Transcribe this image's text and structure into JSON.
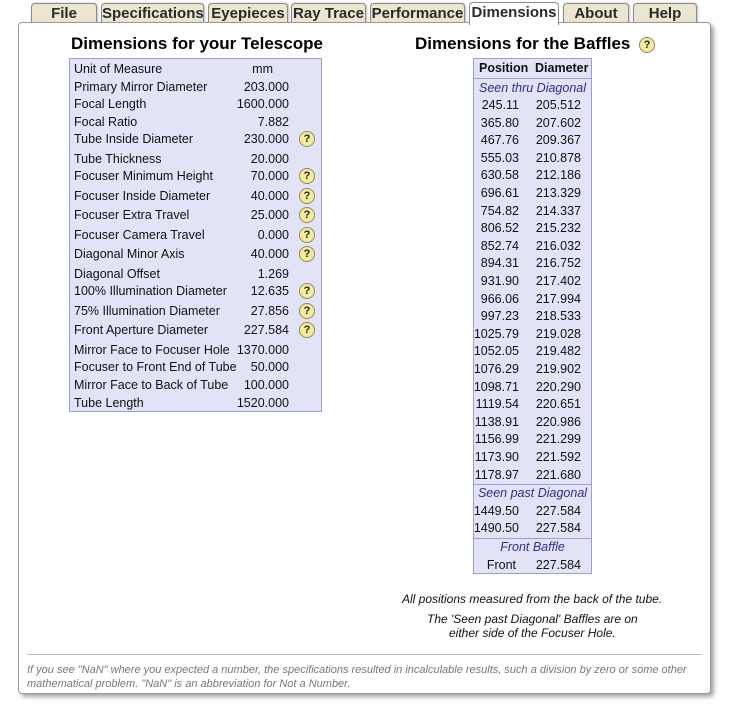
{
  "tabs": [
    {
      "label": "File"
    },
    {
      "label": "Specifications"
    },
    {
      "label": "Eyepieces"
    },
    {
      "label": "Ray Trace"
    },
    {
      "label": "Performance"
    },
    {
      "label": "Dimensions",
      "active": true
    },
    {
      "label": "About"
    },
    {
      "label": "Help"
    }
  ],
  "telescope": {
    "title": "Dimensions for your Telescope",
    "rows": [
      {
        "label": "Unit of Measure",
        "value": "mm"
      },
      {
        "label": "Primary Mirror Diameter",
        "value": "203.000"
      },
      {
        "label": "Focal Length",
        "value": "1600.000"
      },
      {
        "label": "Focal Ratio",
        "value": "7.882"
      },
      {
        "label": "Tube Inside Diameter",
        "value": "230.000",
        "help": "?"
      },
      {
        "label": "Tube Thickness",
        "value": "20.000"
      },
      {
        "label": "Focuser Minimum Height",
        "value": "70.000",
        "help": "?"
      },
      {
        "label": "Focuser Inside Diameter",
        "value": "40.000",
        "help": "?"
      },
      {
        "label": "Focuser Extra Travel",
        "value": "25.000",
        "help": "?"
      },
      {
        "label": "Focuser Camera Travel",
        "value": "0.000",
        "help": "?"
      },
      {
        "label": "Diagonal Minor Axis",
        "value": "40.000",
        "help": "?"
      },
      {
        "label": "Diagonal Offset",
        "value": "1.269"
      },
      {
        "label": "100% Illumination Diameter",
        "value": "12.635",
        "help": "?"
      },
      {
        "label": "75% Illumination Diameter",
        "value": "27.856",
        "help": "?"
      },
      {
        "label": "Front Aperture Diameter",
        "value": "227.584",
        "help": "?"
      },
      {
        "label": "Mirror Face to Focuser Hole",
        "value": "1370.000"
      },
      {
        "label": "Focuser to Front End of Tube",
        "value": "50.000"
      },
      {
        "label": "Mirror Face to Back of Tube",
        "value": "100.000"
      },
      {
        "label": "Tube Length",
        "value": "1520.000"
      }
    ]
  },
  "baffles": {
    "title": "Dimensions for the Baffles",
    "help": "?",
    "headers": [
      "Position",
      "Diameter"
    ],
    "section_thru": "Seen thru Diagonal",
    "thru_rows": [
      [
        "245.11",
        "205.512"
      ],
      [
        "365.80",
        "207.602"
      ],
      [
        "467.76",
        "209.367"
      ],
      [
        "555.03",
        "210.878"
      ],
      [
        "630.58",
        "212.186"
      ],
      [
        "696.61",
        "213.329"
      ],
      [
        "754.82",
        "214.337"
      ],
      [
        "806.52",
        "215.232"
      ],
      [
        "852.74",
        "216.032"
      ],
      [
        "894.31",
        "216.752"
      ],
      [
        "931.90",
        "217.402"
      ],
      [
        "966.06",
        "217.994"
      ],
      [
        "997.23",
        "218.533"
      ],
      [
        "1025.79",
        "219.028"
      ],
      [
        "1052.05",
        "219.482"
      ],
      [
        "1076.29",
        "219.902"
      ],
      [
        "1098.71",
        "220.290"
      ],
      [
        "1119.54",
        "220.651"
      ],
      [
        "1138.91",
        "220.986"
      ],
      [
        "1156.99",
        "221.299"
      ],
      [
        "1173.90",
        "221.592"
      ],
      [
        "1178.97",
        "221.680"
      ]
    ],
    "section_past": "Seen past Diagonal",
    "past_rows": [
      [
        "1449.50",
        "227.584"
      ],
      [
        "1490.50",
        "227.584"
      ]
    ],
    "section_front": "Front Baffle",
    "front_rows": [
      [
        "Front",
        "227.584"
      ]
    ]
  },
  "notes": {
    "measured": "All positions measured from the back of the tube.",
    "past_line1": "The 'Seen past Diagonal' Baffles are on",
    "past_line2": "either side of the Focuser Hole."
  },
  "footer": "If you see \"NaN\" where you expected a number, the specifications resulted in incalculable results, such a division by zero or some other mathematical problem. \"NaN\" is an abbreviation for Not a Number."
}
